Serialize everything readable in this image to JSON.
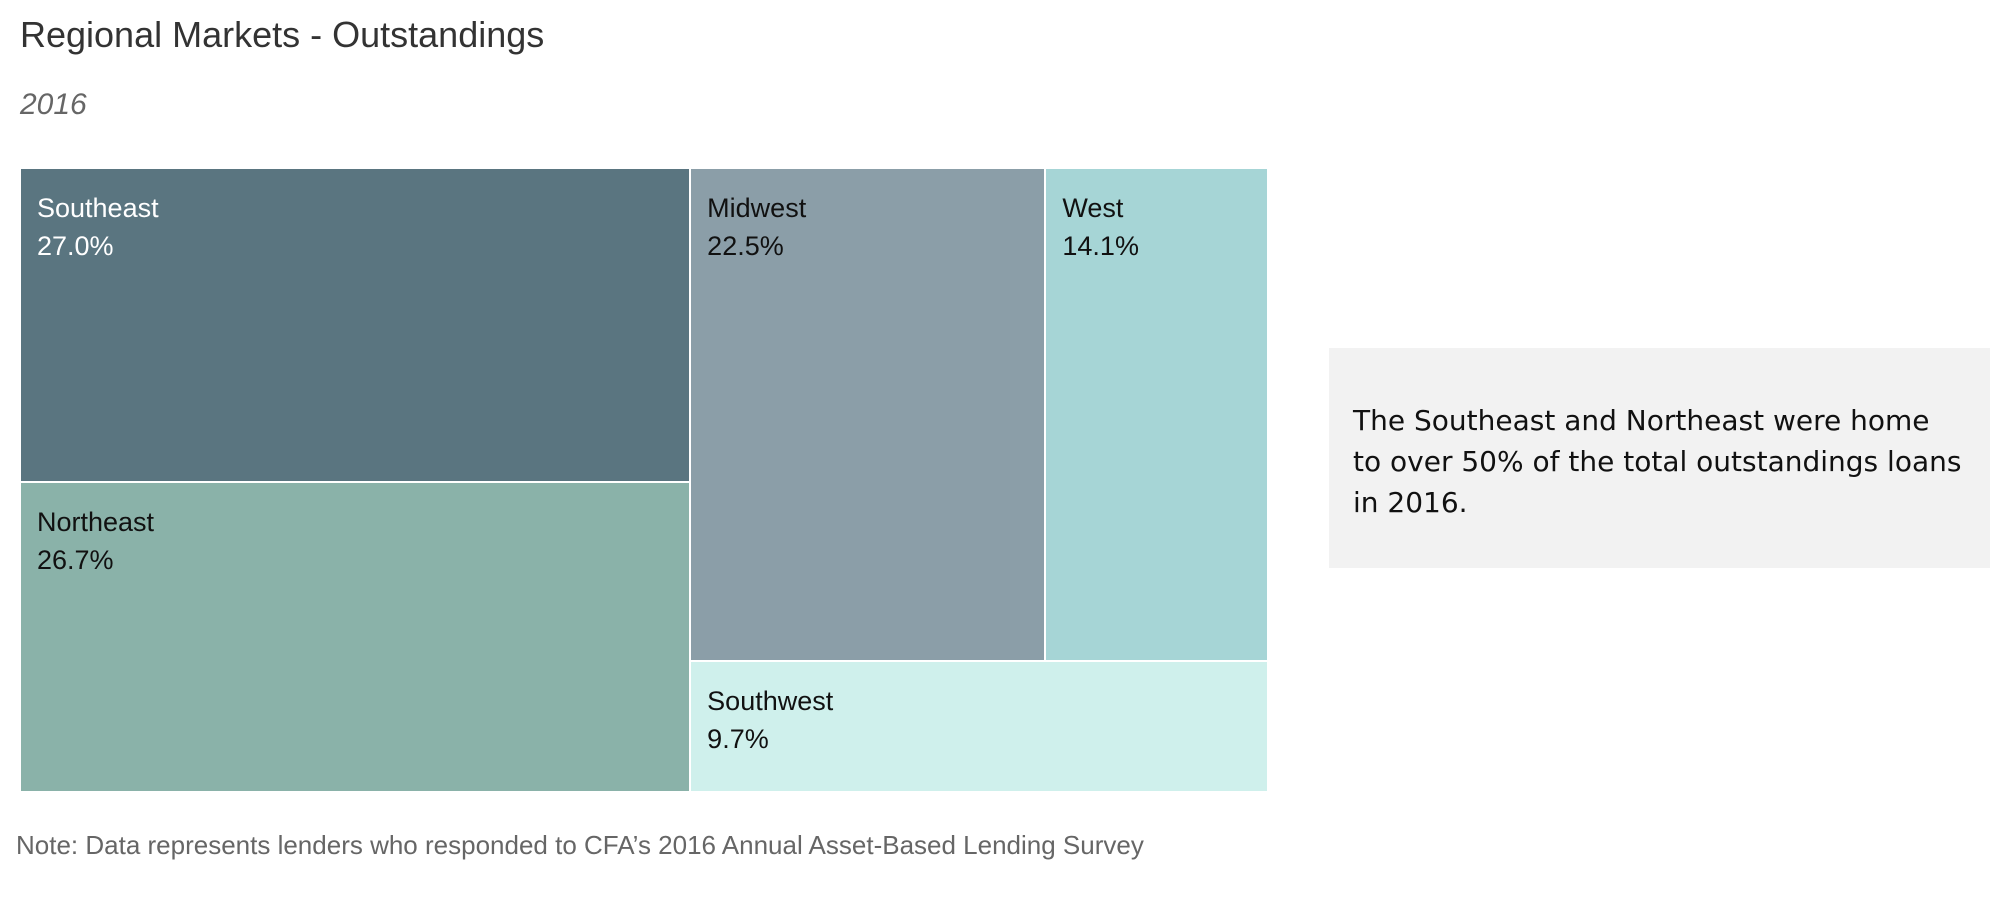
{
  "title": "Regional Markets - Outstandings",
  "subtitle": "2016",
  "chart_data": {
    "type": "treemap",
    "title": "Regional Markets - Outstandings",
    "subtitle": "2016",
    "unit": "%",
    "regions": [
      {
        "name": "Southeast",
        "value": 27.0,
        "label": "27.0%",
        "color": "#5a7580",
        "text_color": "#ffffff"
      },
      {
        "name": "Northeast",
        "value": 26.7,
        "label": "26.7%",
        "color": "#8ab2a9",
        "text_color": "#111111"
      },
      {
        "name": "Midwest",
        "value": 22.5,
        "label": "22.5%",
        "color": "#8b9ea8",
        "text_color": "#111111"
      },
      {
        "name": "West",
        "value": 14.1,
        "label": "14.1%",
        "color": "#a6d5d6",
        "text_color": "#111111"
      },
      {
        "name": "Southwest",
        "value": 9.7,
        "label": "9.7%",
        "color": "#cff0ec",
        "text_color": "#111111"
      }
    ]
  },
  "callout": {
    "text": "The Southeast and Northeast were home to over 50% of the total outstandings loans in 2016."
  },
  "note": "Note: Data represents lenders who responded to CFA’s 2016 Annual Asset-Based Lending Survey"
}
